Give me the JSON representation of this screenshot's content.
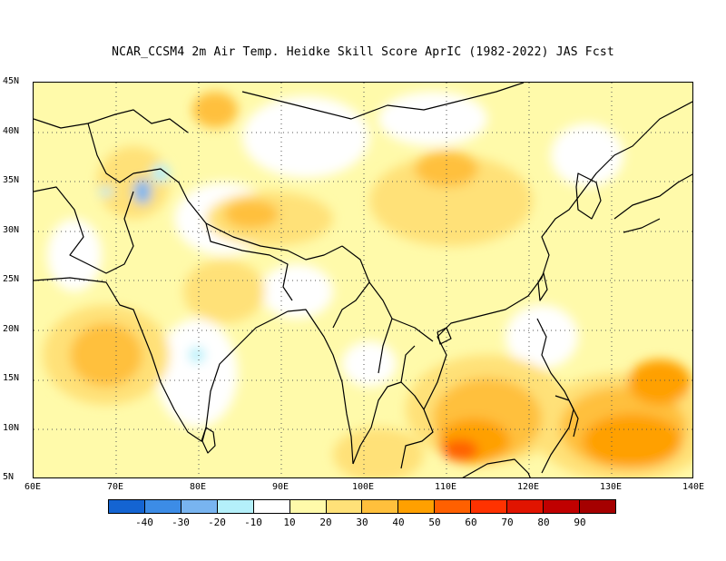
{
  "title": "NCAR_CCSM4  2m Air Temp. Heidke Skill Score AprIC (1982-2022) JAS Fcst",
  "map": {
    "lon_range": [
      60,
      140
    ],
    "lat_range": [
      5,
      45
    ],
    "lat_ticks": [
      "45N",
      "40N",
      "35N",
      "30N",
      "25N",
      "20N",
      "15N",
      "10N",
      "5N"
    ],
    "lon_ticks": [
      "60E",
      "70E",
      "80E",
      "90E",
      "100E",
      "110E",
      "120E",
      "130E",
      "140E"
    ]
  },
  "colorbar": {
    "colors": [
      "#1464d2",
      "#3c8ce6",
      "#78b4f0",
      "#b4f0fa",
      "#ffffff",
      "#fffaaa",
      "#ffe178",
      "#ffc03c",
      "#ffa000",
      "#ff6000",
      "#ff3200",
      "#e11400",
      "#c00000",
      "#a50000"
    ],
    "labels": [
      "-40",
      "-30",
      "-20",
      "-10",
      "10",
      "20",
      "30",
      "40",
      "50",
      "60",
      "70",
      "80",
      "90"
    ]
  }
}
